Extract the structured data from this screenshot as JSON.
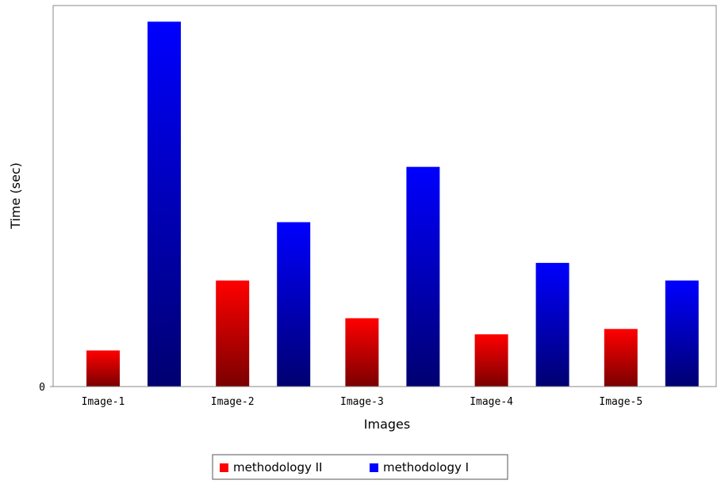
{
  "chart_data": {
    "type": "bar",
    "title": "",
    "xlabel": "Images",
    "ylabel": "Time (sec)",
    "categories": [
      "Image-1",
      "Image-2",
      "Image-3",
      "Image-4",
      "Image-5"
    ],
    "series": [
      {
        "name": "methodology II",
        "values": [
          0.47,
          1.38,
          0.89,
          0.68,
          0.75
        ],
        "color": "#ff0000",
        "color_dark": "#7a0000"
      },
      {
        "name": "methodology I",
        "values": [
          4.75,
          2.14,
          2.86,
          1.61,
          1.38
        ],
        "color": "#0000ff",
        "color_dark": "#000070"
      }
    ],
    "ylim": [
      0,
      4.96
    ],
    "y_ticks": [
      0
    ],
    "y_tick_labels": [
      "0"
    ],
    "grid": false,
    "legend_position": "bottom"
  }
}
